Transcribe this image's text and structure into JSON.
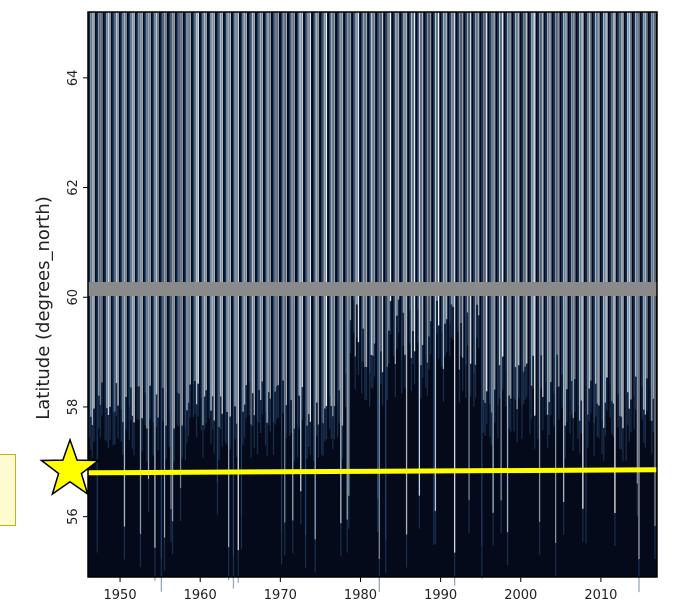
{
  "chart_data": {
    "type": "heatmap",
    "xlabel": "",
    "ylabel": "Latitude (degrees_north)",
    "xlim": [
      1946,
      2017
    ],
    "ylim": [
      54.9,
      65.2
    ],
    "x_ticks": [
      1950,
      1960,
      1970,
      1980,
      1990,
      2000,
      2010
    ],
    "x_tick_labels": [
      "1950",
      "1960",
      "1970",
      "1980",
      "1990",
      "2000",
      "2010"
    ],
    "y_ticks": [
      56,
      58,
      60,
      62,
      64
    ],
    "y_tick_labels": [
      "56",
      "58",
      "60",
      "62",
      "64"
    ],
    "seasonal_cycle": "annual",
    "gap_band_latitude": 60.15,
    "reference_line_latitude": 56.8,
    "marker": {
      "shape": "star",
      "x": 1946,
      "y": 56.8
    },
    "colors": {
      "background": "#050a1a",
      "low": "#0b1a33",
      "mid": "#2c4f7a",
      "high": "#bcd8ee",
      "peak": "#ffffff",
      "gap": "#8a8a8a",
      "line": "#ffff00",
      "star": "#ffff00"
    }
  }
}
